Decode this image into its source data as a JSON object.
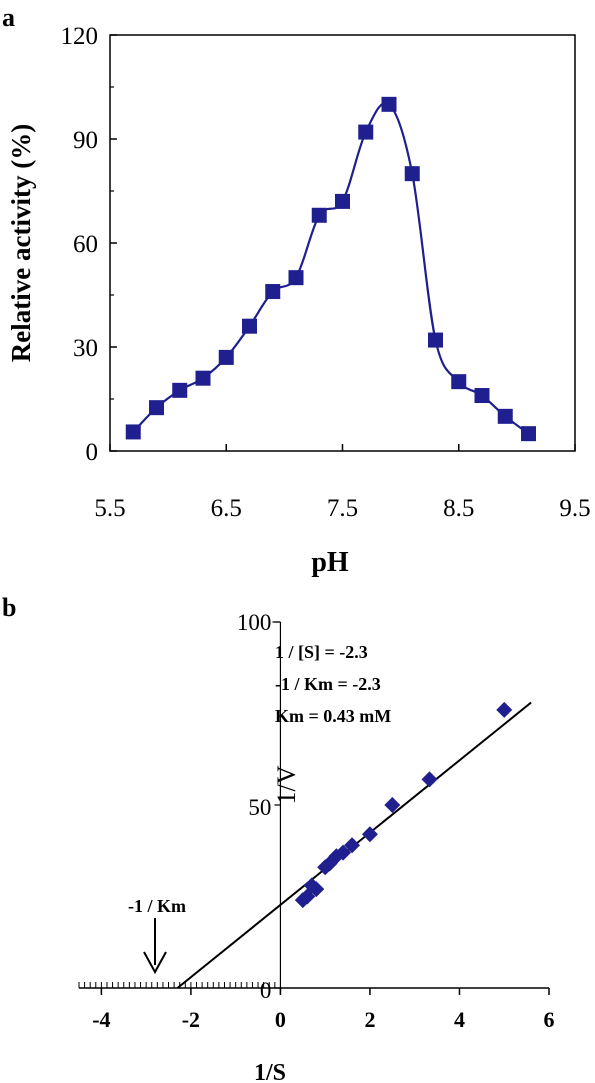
{
  "panels": {
    "a": {
      "label": "a",
      "xlabel": "pH",
      "ylabel": "Relative activity (%)"
    },
    "b": {
      "label": "b",
      "xlabel": "1/S",
      "ylabel": "1/V",
      "annotations": [
        "1 / [S] = -2.3",
        "-1 / Km = -2.3",
        "Km = 0.43 mM"
      ],
      "arrow_label": "-1 / Km"
    }
  },
  "colors": {
    "series": "#1f1f8f",
    "axis": "#000000",
    "line": "#000000"
  },
  "chart_data": [
    {
      "type": "line",
      "panel": "a",
      "title": "",
      "xlabel": "pH",
      "ylabel": "Relative activity (%)",
      "xlim": [
        5.5,
        9.5
      ],
      "ylim": [
        0,
        120
      ],
      "x_ticks": [
        5.5,
        6.5,
        7.5,
        8.5,
        9.5
      ],
      "y_ticks": [
        0,
        30,
        60,
        90,
        120
      ],
      "grid": false,
      "marker": "square",
      "x": [
        5.7,
        5.9,
        6.1,
        6.3,
        6.5,
        6.7,
        6.9,
        7.1,
        7.3,
        7.5,
        7.7,
        7.9,
        8.1,
        8.3,
        8.5,
        8.7,
        8.9,
        9.1
      ],
      "y": [
        5.5,
        12.5,
        17.5,
        21,
        27,
        36,
        46,
        50,
        68,
        72,
        92,
        100,
        80,
        32,
        20,
        16,
        10,
        5
      ]
    },
    {
      "type": "scatter",
      "panel": "b",
      "title": "",
      "xlabel": "1/S",
      "ylabel": "1/V",
      "xlim": [
        -4.5,
        6
      ],
      "ylim": [
        0,
        100
      ],
      "x_ticks": [
        -4,
        -2,
        0,
        2,
        4,
        6
      ],
      "y_ticks": [
        0,
        50,
        100
      ],
      "grid": false,
      "marker": "diamond",
      "x": [
        0.5,
        0.6,
        0.7,
        0.8,
        1.0,
        1.1,
        1.25,
        1.4,
        1.6,
        2.0,
        2.5,
        3.33,
        5.0
      ],
      "y": [
        24,
        25,
        28,
        27,
        33,
        34,
        36,
        37,
        39,
        42,
        50,
        57,
        76
      ],
      "fit_line": {
        "x_intercept": -2.3,
        "y_intercept": 22.6,
        "x_end": 5.6,
        "y_end": 78
      }
    }
  ]
}
